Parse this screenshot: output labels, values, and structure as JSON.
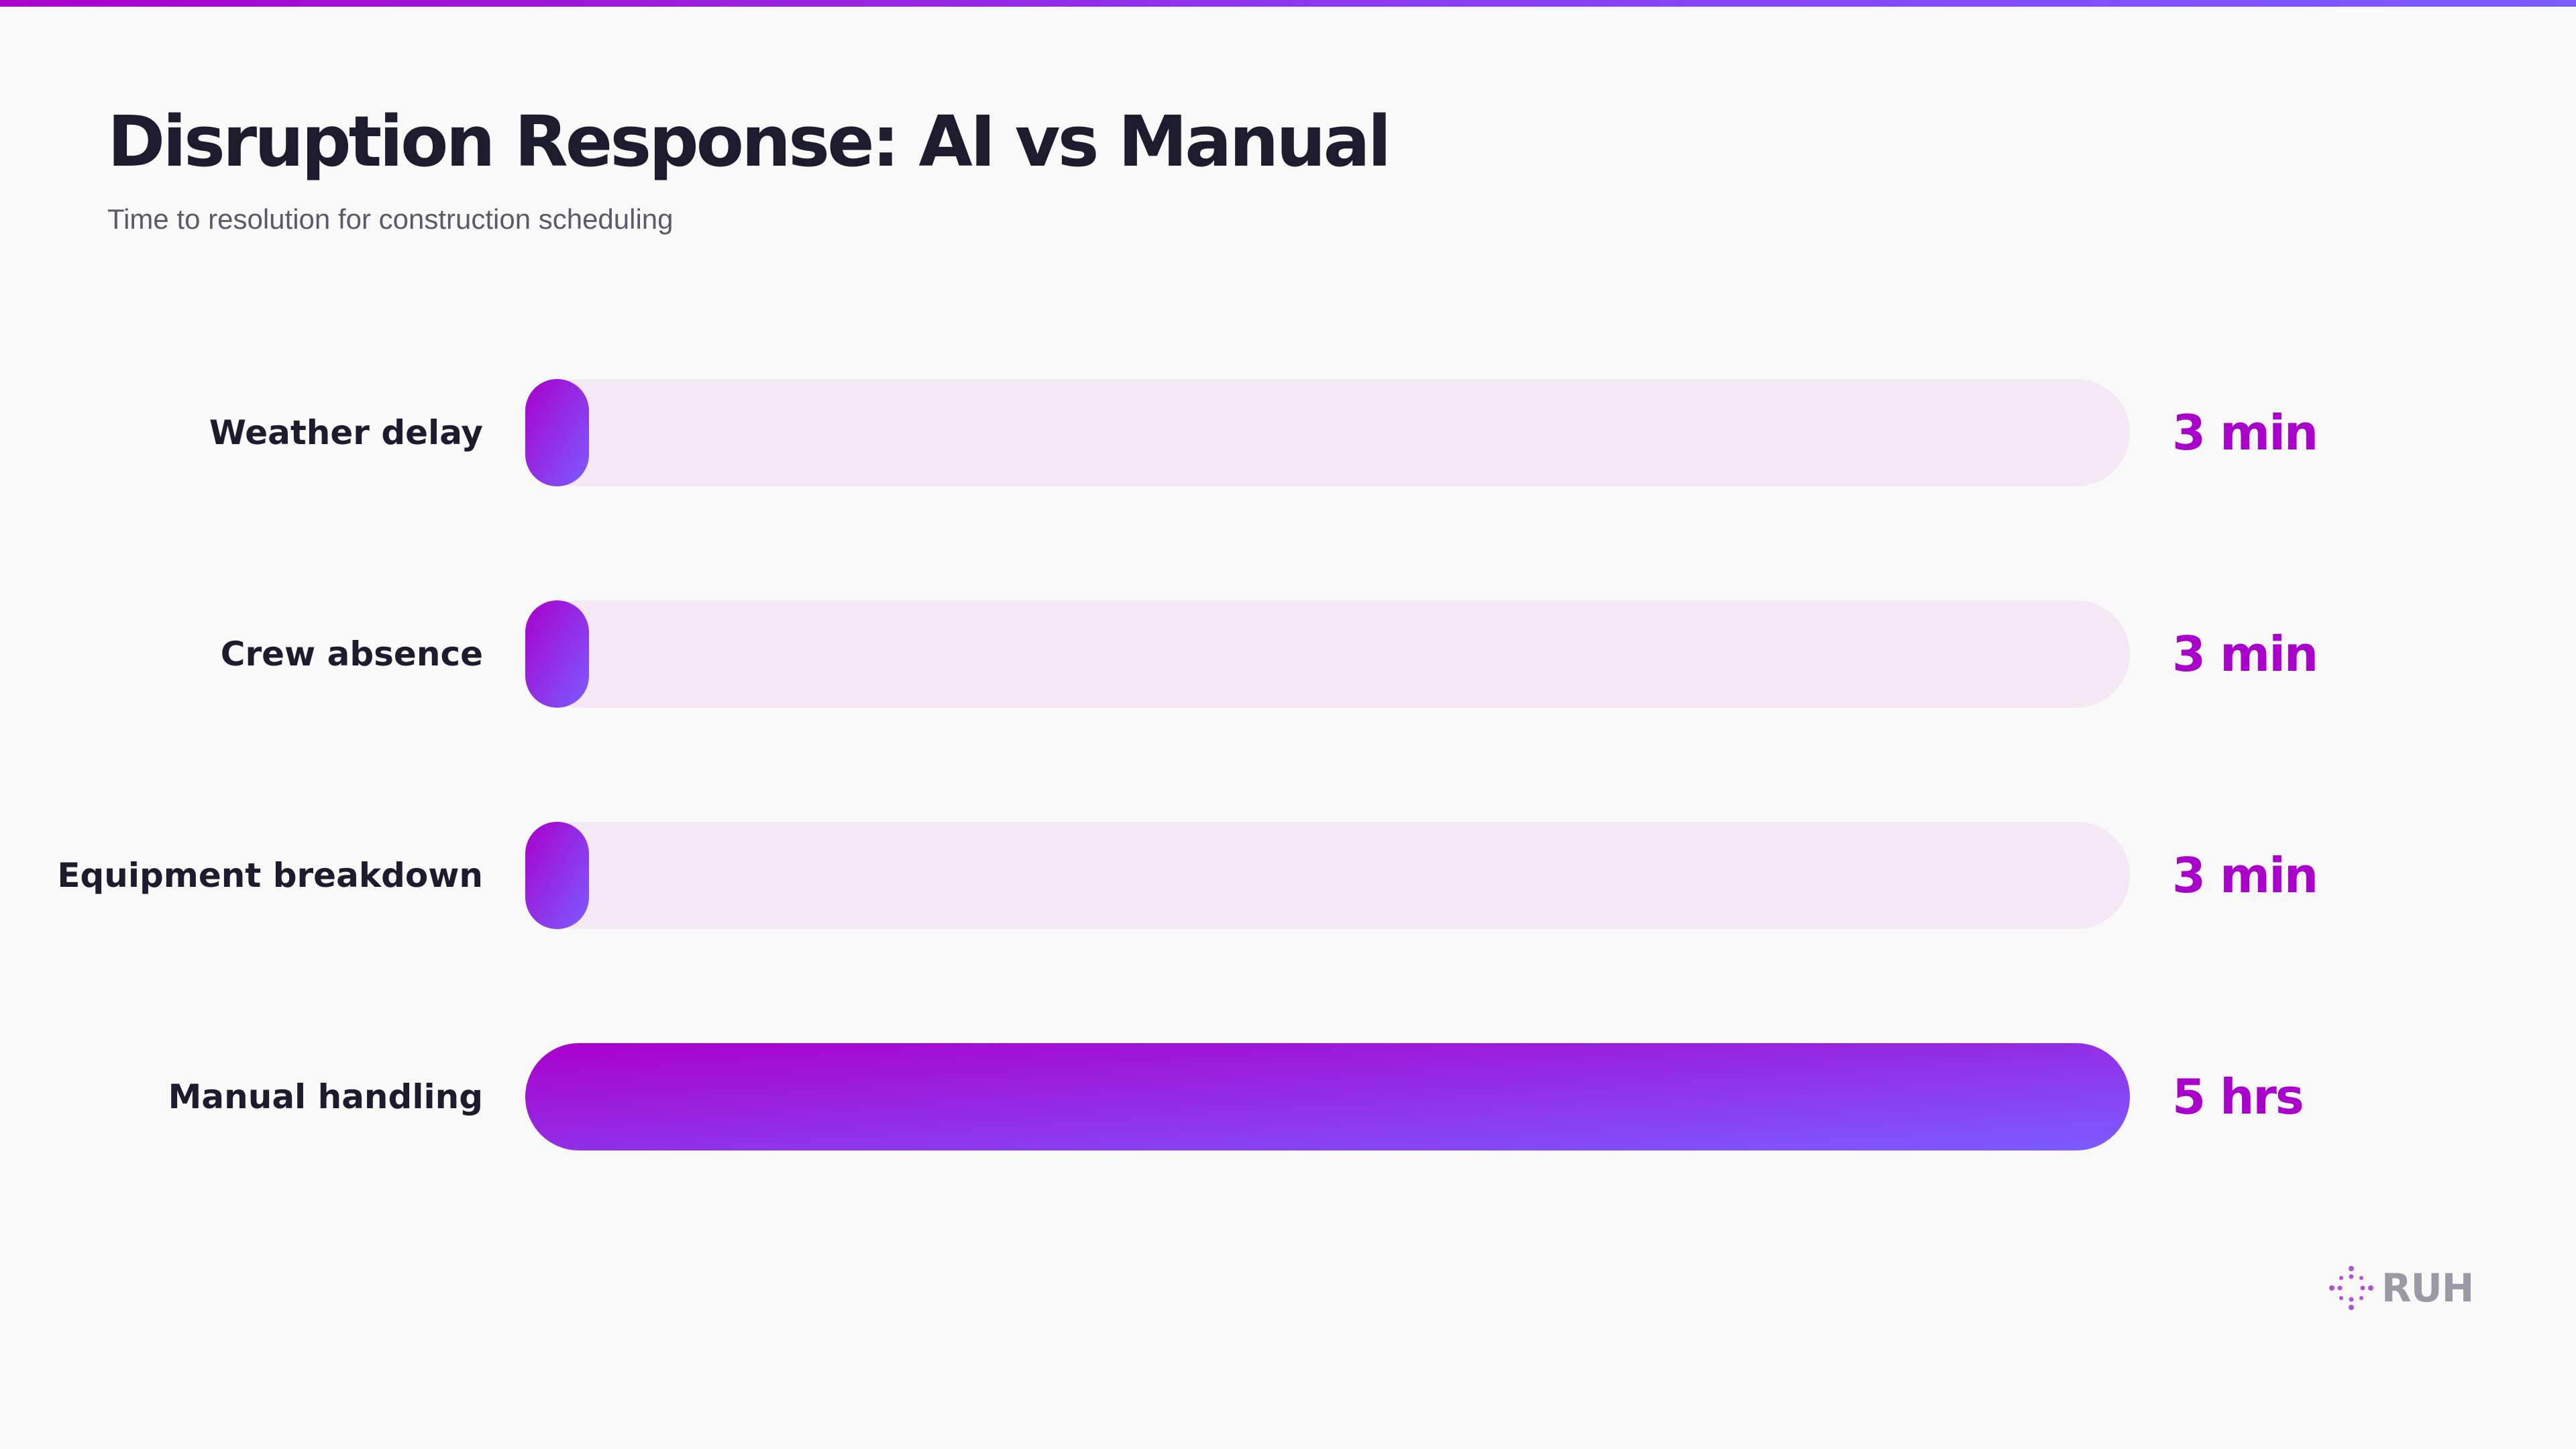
{
  "header": {
    "title": "Disruption Response: AI vs Manual",
    "subtitle": "Time to resolution for construction scheduling"
  },
  "colors": {
    "accent": "#aa00cc",
    "accent_end": "#7b5cff",
    "track": "#f4e8f5",
    "text_dark": "#1c1c2e",
    "text_muted": "#5a5a68"
  },
  "brand": {
    "icon": "dotted-sparkle-icon",
    "name": "RUH"
  },
  "chart_data": {
    "type": "bar",
    "orientation": "horizontal",
    "title": "Disruption Response: AI vs Manual",
    "subtitle": "Time to resolution for construction scheduling",
    "categories": [
      "Weather delay",
      "Crew absence",
      "Equipment breakdown",
      "Manual handling"
    ],
    "values_minutes": [
      3,
      3,
      3,
      300
    ],
    "value_labels": [
      "3 min",
      "3 min",
      "3 min",
      "5 hrs"
    ],
    "xlim": [
      0,
      300
    ],
    "grid": false,
    "legend": "none"
  }
}
